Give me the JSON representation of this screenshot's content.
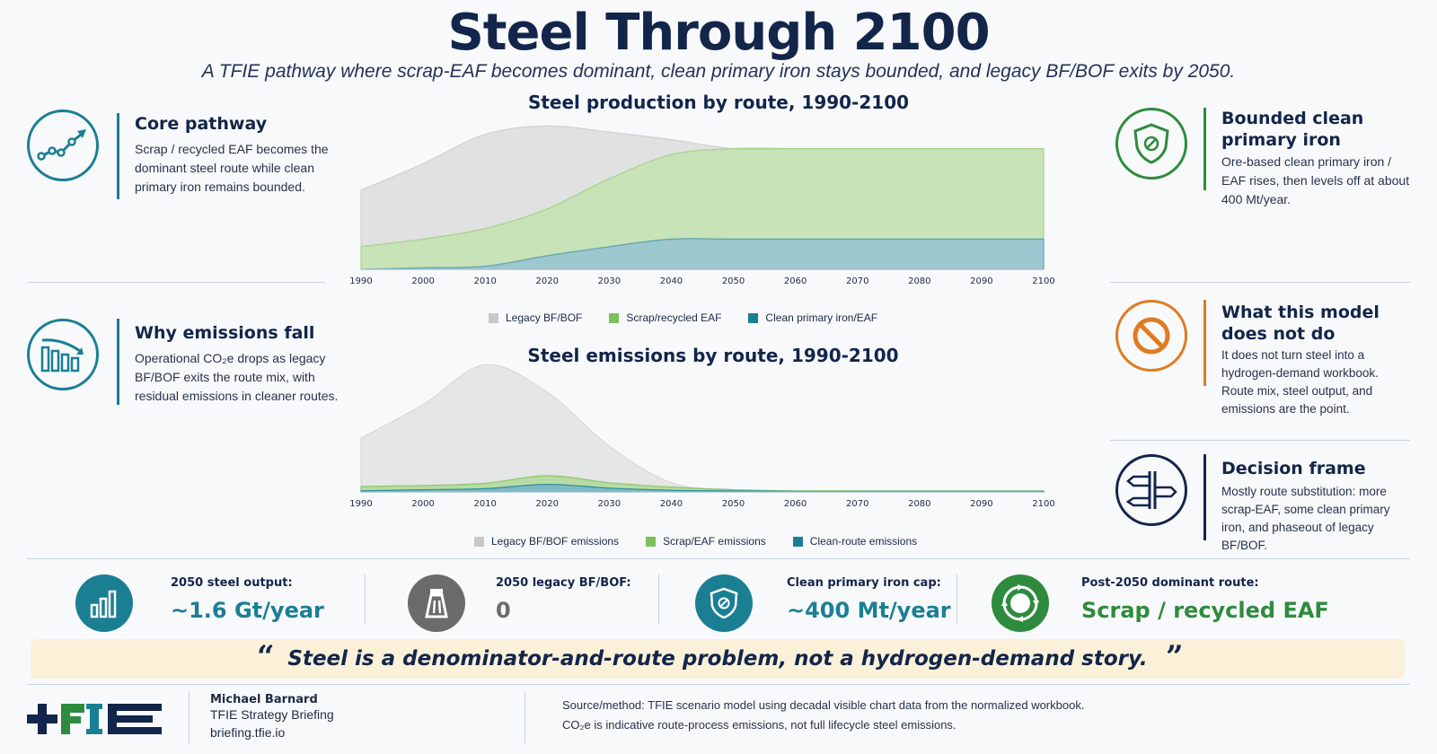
{
  "header": {
    "title": "Steel Through 2100",
    "subtitle": "A TFIE pathway where scrap-EAF becomes dominant, clean primary iron stays bounded, and legacy BF/BOF exits by 2050."
  },
  "left_cards": [
    {
      "icon": "trend-line-icon",
      "title": "Core pathway",
      "text": "Scrap / recycled EAF becomes the dominant steel route while clean primary iron remains bounded.",
      "color": "#1b7f94"
    },
    {
      "icon": "falling-bars-icon",
      "title": "Why emissions fall",
      "text": "Operational CO₂e drops as legacy BF/BOF exits the route mix, with residual emissions in cleaner routes.",
      "color": "#1b7f94"
    }
  ],
  "right_cards": [
    {
      "icon": "shield-icon",
      "title": "Bounded clean primary iron",
      "text": "Ore-based clean primary iron / EAF rises, then levels off at about 400 Mt/year.",
      "color": "#2e8b3e"
    },
    {
      "icon": "prohibited-icon",
      "title": "What this model does not do",
      "text": "It does not turn steel into a hydrogen-demand workbook. Route mix, steel output, and emissions are the point.",
      "color": "#e07b1f"
    },
    {
      "icon": "signpost-icon",
      "title": "Decision frame",
      "text": "Mostly route substitution: more scrap-EAF, some clean primary iron, and phaseout of legacy BF/BOF.",
      "color": "#13254a"
    }
  ],
  "chart_data": [
    {
      "type": "area",
      "title": "Steel production by route, 1990-2100",
      "x": [
        1990,
        2000,
        2010,
        2020,
        2030,
        2040,
        2050,
        2060,
        2070,
        2080,
        2090,
        2100
      ],
      "series": [
        {
          "name": "Clean primary iron/EAF",
          "color": "#5fa5b3",
          "values": [
            0.0,
            0.02,
            0.04,
            0.18,
            0.3,
            0.4,
            0.4,
            0.4,
            0.4,
            0.4,
            0.4,
            0.4
          ]
        },
        {
          "name": "Scrap/recycled EAF",
          "color": "#a9d38a",
          "values": [
            0.3,
            0.38,
            0.5,
            0.62,
            0.9,
            1.12,
            1.2,
            1.2,
            1.2,
            1.2,
            1.2,
            1.2
          ]
        },
        {
          "name": "Legacy BF/BOF",
          "color": "#d0d0d0",
          "values": [
            0.75,
            1.0,
            1.25,
            1.1,
            0.62,
            0.2,
            0.0,
            0.0,
            0.0,
            0.0,
            0.0,
            0.0
          ]
        }
      ],
      "stacked": true,
      "ylim": [
        0,
        2.0
      ],
      "legend": "bottom"
    },
    {
      "type": "area",
      "title": "Steel emissions by route, 1990-2100",
      "x": [
        1990,
        2000,
        2010,
        2020,
        2030,
        2040,
        2050,
        2060,
        2070,
        2080,
        2090,
        2100
      ],
      "series": [
        {
          "name": "Clean-route emissions",
          "color": "#2f8fa0",
          "values": [
            0.02,
            0.04,
            0.06,
            0.14,
            0.07,
            0.03,
            0.02,
            0.01,
            0.01,
            0.01,
            0.01,
            0.01
          ]
        },
        {
          "name": "Scrap/EAF emissions",
          "color": "#8ec76a",
          "values": [
            0.08,
            0.08,
            0.1,
            0.16,
            0.1,
            0.06,
            0.02,
            0.01,
            0.01,
            0.01,
            0.01,
            0.01
          ]
        },
        {
          "name": "Legacy BF/BOF emissions",
          "color": "#d8d8d8",
          "values": [
            0.9,
            1.5,
            2.2,
            1.55,
            0.68,
            0.08,
            0.0,
            0.0,
            0.0,
            0.0,
            0.0,
            0.0
          ]
        }
      ],
      "stacked": true,
      "ylim": [
        0,
        2.5
      ],
      "legend": "bottom"
    }
  ],
  "legend1": [
    {
      "label": "Legacy BF/BOF",
      "color": "#c8c8c8"
    },
    {
      "label": "Scrap/recycled EAF",
      "color": "#7cc05a"
    },
    {
      "label": "Clean primary iron/EAF",
      "color": "#1b7f94"
    }
  ],
  "legend2": [
    {
      "label": "Legacy BF/BOF emissions",
      "color": "#c8c8c8"
    },
    {
      "label": "Scrap/EAF emissions",
      "color": "#7cc05a"
    },
    {
      "label": "Clean-route emissions",
      "color": "#1b7f94"
    }
  ],
  "kpis": [
    {
      "icon": "bar-chart-icon",
      "label": "2050 steel output:",
      "value": "~1.6 Gt/year",
      "color": "#1b7f94"
    },
    {
      "icon": "blast-furnace-icon",
      "label": "2050 legacy BF/BOF:",
      "value": "0",
      "color": "#6b6b6b"
    },
    {
      "icon": "shield-icon",
      "label": "Clean primary iron cap:",
      "value": "~400 Mt/year",
      "color": "#1b7f94"
    },
    {
      "icon": "recycle-icon",
      "label": "Post-2050 dominant route:",
      "value": "Scrap / recycled EAF",
      "color": "#2e8b3e"
    }
  ],
  "quote": {
    "open": "“",
    "text": "Steel is a denominator-and-route problem, not a hydrogen-demand story.",
    "close": "”"
  },
  "footer": {
    "logo_text": "TFIE",
    "name": "Michael Barnard",
    "line1": "TFIE Strategy Briefing",
    "line2": "briefing.tfie.io",
    "source1": "Source/method: TFIE scenario model using decadal visible chart data from the normalized workbook.",
    "source2": "CO₂e is indicative route-process emissions, not full lifecycle steel emissions."
  }
}
